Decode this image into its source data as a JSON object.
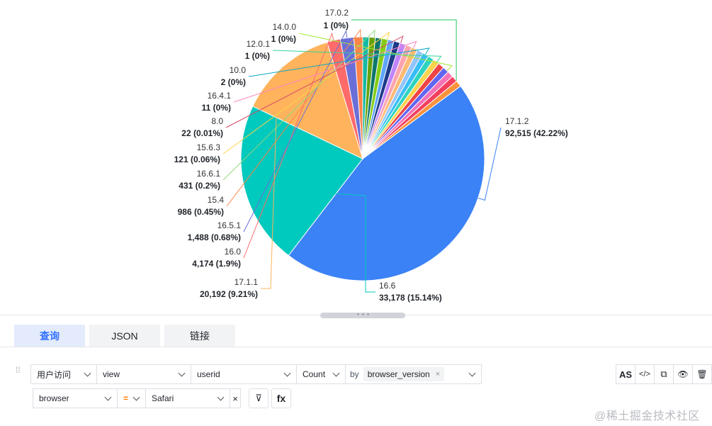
{
  "chart_data": {
    "type": "pie",
    "title": "",
    "slices": [
      {
        "label": "17.1.2",
        "value": 92515,
        "percent": "42.22%",
        "display": "92,515 (42.22%)",
        "color": "#3b82f6"
      },
      {
        "label": "16.6",
        "value": 33178,
        "percent": "15.14%",
        "display": "33,178 (15.14%)",
        "color": "#00c9bd"
      },
      {
        "label": "17.1.1",
        "value": 20192,
        "percent": "9.21%",
        "display": "20,192 (9.21%)",
        "color": "#ffb35c"
      },
      {
        "label": "16.0",
        "value": 4174,
        "percent": "1.9%",
        "display": "4,174 (1.9%)",
        "color": "#ff6b6b"
      },
      {
        "label": "16.5.1",
        "value": 1488,
        "percent": "0.68%",
        "display": "1,488 (0.68%)",
        "color": "#6a6fd8"
      },
      {
        "label": "15.4",
        "value": 986,
        "percent": "0.45%",
        "display": "986 (0.45%)",
        "color": "#ff8447"
      },
      {
        "label": "16.6.1",
        "value": 431,
        "percent": "0.2%",
        "display": "431 (0.2%)",
        "color": "#8fd97c"
      },
      {
        "label": "15.6.3",
        "value": 121,
        "percent": "0.06%",
        "display": "121 (0.06%)",
        "color": "#ffd447"
      },
      {
        "label": "8.0",
        "value": 22,
        "percent": "0.01%",
        "display": "22 (0.01%)",
        "color": "#d94868"
      },
      {
        "label": "16.4.1",
        "value": 11,
        "percent": "0%",
        "display": "11 (0%)",
        "color": "#ff85c0"
      },
      {
        "label": "10.0",
        "value": 2,
        "percent": "0%",
        "display": "2 (0%)",
        "color": "#0ba8c4"
      },
      {
        "label": "12.0.1",
        "value": 1,
        "percent": "0%",
        "display": "1 (0%)",
        "color": "#34d399"
      },
      {
        "label": "14.0.0",
        "value": 1,
        "percent": "0%",
        "display": "1 (0%)",
        "color": "#a3e635"
      },
      {
        "label": "17.0.2",
        "value": 1,
        "percent": "0%",
        "display": "1 (0%)",
        "color": "#22c55e"
      }
    ],
    "other_slice_colors": [
      "#fb923c",
      "#f43f5e",
      "#f472b6",
      "#6366f1",
      "#ef4444",
      "#fcd34d",
      "#2dd4bf",
      "#38bdf8",
      "#93c5fd",
      "#fdba74",
      "#fda4af",
      "#c084fc",
      "#1e3a8a",
      "#60a5fa",
      "#84cc16",
      "#0f766e",
      "#65a30d",
      "#14b8a6"
    ],
    "legend": "none"
  },
  "tabs": [
    {
      "label": "查询",
      "active": true
    },
    {
      "label": "JSON",
      "active": false
    },
    {
      "label": "链接",
      "active": false
    }
  ],
  "query": {
    "event_group": "用户访问",
    "event": "view",
    "field": "userid",
    "aggregation": "Count",
    "by_label": "by",
    "group_by_tag": "browser_version",
    "tag_remove": "×"
  },
  "filter": {
    "field": "browser",
    "operator": "=",
    "value": "Safari",
    "clear": "×"
  },
  "toolbar": {
    "as_label": "AS",
    "code_label": "</>",
    "copy_label": "⧉",
    "eye_label": "👁",
    "delete_label": "🗑",
    "filter_label": "⊽",
    "fx_label": "fx"
  },
  "watermark": "@稀土掘金技术社区"
}
